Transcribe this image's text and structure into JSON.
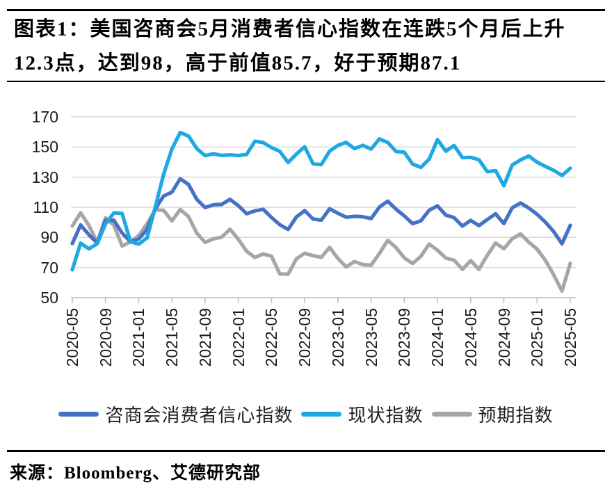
{
  "figure": {
    "title_line1": "图表1：美国咨商会5月消费者信心指数在连跌5个月后上升",
    "title_line2": "12.3点，达到98，高于前值85.7，好于预期87.1",
    "source": "来源：Bloomberg、艾德研究部"
  },
  "chart_data": {
    "type": "line",
    "title": "图表1：美国咨商会5月消费者信心指数在连跌5个月后上升12.3点，达到98，高于前值85.7，好于预期87.1",
    "xlabel": "",
    "ylabel": "",
    "ylim": [
      50,
      170
    ],
    "yticks": [
      50,
      70,
      90,
      110,
      130,
      150,
      170
    ],
    "xtick_every": 4,
    "grid": "horizontal",
    "legend_position": "bottom",
    "grid_color": "#D9D9D9",
    "axis_color": "#BFBFBF",
    "x": [
      "2020-05",
      "2020-06",
      "2020-07",
      "2020-08",
      "2020-09",
      "2020-10",
      "2020-11",
      "2020-12",
      "2021-01",
      "2021-02",
      "2021-03",
      "2021-04",
      "2021-05",
      "2021-06",
      "2021-07",
      "2021-08",
      "2021-09",
      "2021-10",
      "2021-11",
      "2021-12",
      "2022-01",
      "2022-02",
      "2022-03",
      "2022-04",
      "2022-05",
      "2022-06",
      "2022-07",
      "2022-08",
      "2022-09",
      "2022-10",
      "2022-11",
      "2022-12",
      "2023-01",
      "2023-02",
      "2023-03",
      "2023-04",
      "2023-05",
      "2023-06",
      "2023-07",
      "2023-08",
      "2023-09",
      "2023-10",
      "2023-11",
      "2023-12",
      "2024-01",
      "2024-02",
      "2024-03",
      "2024-04",
      "2024-05",
      "2024-06",
      "2024-07",
      "2024-08",
      "2024-09",
      "2024-10",
      "2024-11",
      "2024-12",
      "2025-01",
      "2025-02",
      "2025-03",
      "2025-04",
      "2025-05"
    ],
    "series": [
      {
        "name": "咨商会消费者信心指数",
        "color": "#4472C4",
        "values": [
          85.9,
          98.3,
          91.7,
          86.3,
          101.3,
          101.4,
          92.9,
          87.1,
          88.9,
          95.2,
          109.0,
          117.5,
          120.0,
          128.9,
          125.1,
          115.2,
          109.8,
          111.6,
          111.9,
          115.2,
          111.1,
          105.7,
          107.6,
          108.6,
          103.2,
          98.4,
          95.3,
          103.6,
          107.8,
          102.2,
          101.4,
          109.0,
          106.0,
          103.4,
          104.0,
          103.7,
          102.5,
          110.1,
          114.0,
          108.7,
          104.3,
          99.1,
          101.0,
          108.0,
          110.9,
          104.8,
          103.1,
          97.5,
          101.3,
          97.8,
          101.9,
          105.6,
          99.2,
          109.6,
          112.8,
          109.5,
          105.3,
          100.1,
          93.9,
          85.7,
          98.0
        ]
      },
      {
        "name": "现状指数",
        "color": "#1FA8E1",
        "values": [
          68.5,
          86.2,
          82.4,
          85.8,
          98.9,
          106.2,
          105.9,
          87.2,
          85.5,
          89.6,
          110.1,
          131.9,
          148.7,
          159.6,
          157.2,
          148.9,
          144.3,
          145.5,
          144.4,
          144.8,
          144.3,
          145.1,
          153.8,
          152.9,
          149.6,
          147.1,
          139.7,
          145.3,
          150.1,
          138.9,
          138.3,
          147.2,
          151.1,
          153.0,
          148.9,
          151.1,
          148.6,
          155.3,
          153.0,
          147.0,
          146.5,
          138.6,
          136.5,
          141.9,
          154.9,
          147.2,
          151.0,
          142.9,
          143.1,
          141.5,
          133.6,
          134.3,
          124.3,
          138.0,
          141.4,
          144.0,
          139.9,
          137.1,
          134.5,
          131.1,
          135.9
        ]
      },
      {
        "name": "预期指数",
        "color": "#A6A6A6",
        "values": [
          97.6,
          106.3,
          97.9,
          86.6,
          102.9,
          98.2,
          84.3,
          87.0,
          91.2,
          99.0,
          108.3,
          107.9,
          100.9,
          108.5,
          103.8,
          92.8,
          86.7,
          89.0,
          90.2,
          95.4,
          88.8,
          80.8,
          76.7,
          79.0,
          77.5,
          65.8,
          65.6,
          75.8,
          79.5,
          77.9,
          76.7,
          83.4,
          76.0,
          70.4,
          74.0,
          71.9,
          71.5,
          79.3,
          88.0,
          83.3,
          76.4,
          72.7,
          77.4,
          85.6,
          81.5,
          76.3,
          74.9,
          68.8,
          74.6,
          68.8,
          78.2,
          86.3,
          82.5,
          89.1,
          92.3,
          86.9,
          82.2,
          74.8,
          65.2,
          54.4,
          72.8
        ]
      }
    ]
  }
}
